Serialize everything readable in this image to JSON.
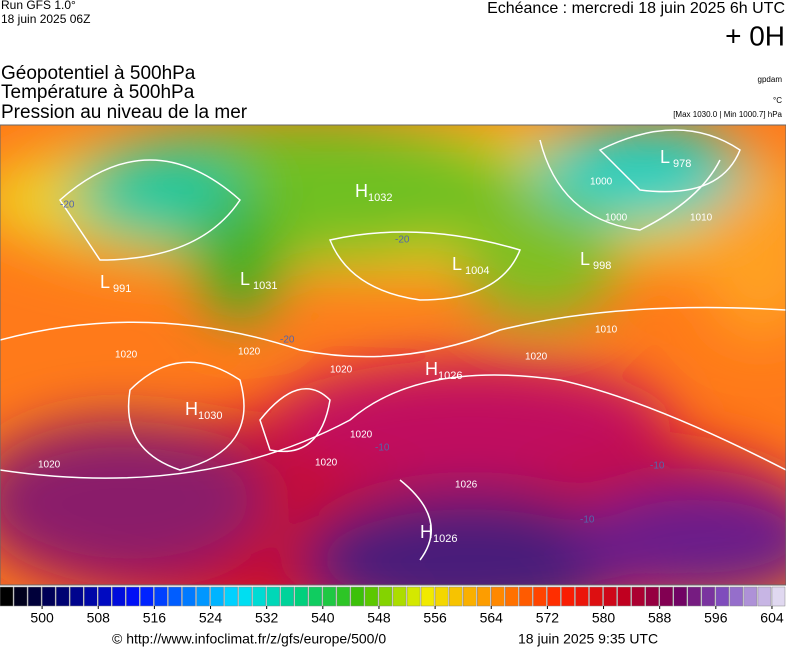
{
  "header": {
    "run": "Run GFS 1.0°",
    "run_date": "18 juin 2025 06Z",
    "forecast": "Echéance : mercredi 18 juin 2025 6h UTC",
    "lead": "+ 0H"
  },
  "titles": [
    "Géopotentiel à 500hPa",
    "Température à 500hPa",
    "Pression au niveau de la mer"
  ],
  "units": {
    "geopotential": "gpdam",
    "temperature": "°C",
    "pressure": "[Max 1030.0 | Min 1000.7] hPa"
  },
  "centers": [
    {
      "letter": "L",
      "value": "991"
    },
    {
      "letter": "L",
      "value": "1031"
    },
    {
      "letter": "H",
      "value": "1032"
    },
    {
      "letter": "L",
      "value": "1004"
    },
    {
      "letter": "L",
      "value": "998"
    },
    {
      "letter": "L",
      "value": "978"
    },
    {
      "letter": "H",
      "value": "1026"
    },
    {
      "letter": "H",
      "value": "1030"
    },
    {
      "letter": "H",
      "value": "1026"
    }
  ],
  "isobar_labels": [
    "1020",
    "1020",
    "1020",
    "1020",
    "1020",
    "1020",
    "1020",
    "1000",
    "1000",
    "1010",
    "1010",
    "1026"
  ],
  "isotherm_labels": [
    "-20",
    "-20",
    "-20",
    "-10",
    "-10",
    "-10"
  ],
  "colorbar": {
    "lim": [
      494,
      606
    ],
    "ticks": [
      500,
      508,
      516,
      524,
      532,
      540,
      548,
      556,
      564,
      572,
      580,
      588,
      596,
      604
    ]
  },
  "footer": {
    "source": "© http://www.infoclimat.fr/z/gfs/europe/500/0",
    "timestamp": "18 juin 2025  9:35 UTC"
  }
}
